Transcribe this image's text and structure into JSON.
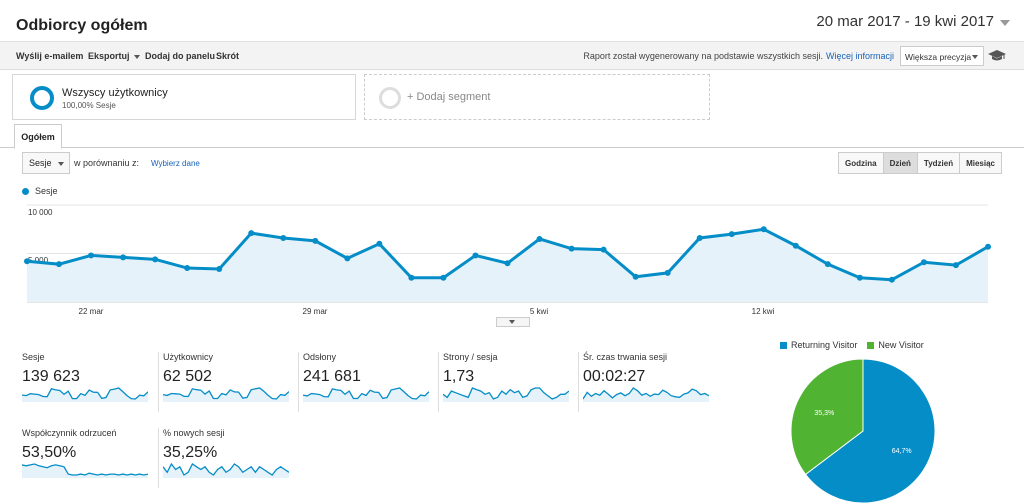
{
  "header": {
    "title": "Odbiorcy ogółem",
    "date_range": "20 mar 2017 - 19 kwi 2017"
  },
  "toolbar": {
    "email": "Wyślij e-mailem",
    "export": "Eksportuj",
    "add_panel": "Dodaj do panelu",
    "shortcut": "Skrót",
    "info_text": "Raport został wygenerowany na podstawie wszystkich sesji.",
    "info_link": "Więcej informacji",
    "precision": "Większa precyzja"
  },
  "segments": {
    "active": {
      "name": "Wszyscy użytkownicy",
      "sub": "100,00% Sesje"
    },
    "add_label": "+ Dodaj segment"
  },
  "tabs": {
    "overview": "Ogółem"
  },
  "controls": {
    "metric": "Sesje",
    "compare_label": "w porównaniu z:",
    "choose_data": "Wybierz dane",
    "granularity": [
      "Godzina",
      "Dzień",
      "Tydzień",
      "Miesiąc"
    ],
    "active_granularity": "Dzień"
  },
  "chart_data": [
    {
      "type": "area",
      "series": [
        {
          "name": "Sesje",
          "values": [
            4200,
            3900,
            4800,
            4600,
            4400,
            3500,
            3400,
            7100,
            6600,
            6300,
            4500,
            6000,
            2500,
            2500,
            4800,
            4000,
            6500,
            5500,
            5400,
            2600,
            3000,
            6600,
            7000,
            7500,
            5800,
            3900,
            2500,
            2300,
            4100,
            3800,
            5700
          ]
        }
      ],
      "x_tick_labels": [
        "22 mar",
        "29 mar",
        "5 kwi",
        "12 kwi"
      ],
      "y_tick_labels": [
        "10 000",
        "5 000"
      ],
      "ylim": [
        0,
        10000
      ],
      "color": "#058dc7"
    },
    {
      "type": "pie",
      "categories": [
        "Returning Visitor",
        "New Visitor"
      ],
      "values": [
        64.7,
        35.3
      ],
      "labels": [
        "64,7%",
        "35,3%"
      ],
      "colors": [
        "#058dc7",
        "#50b432"
      ],
      "legend": "top"
    }
  ],
  "scorecards": [
    {
      "label": "Sesje",
      "value": "139 623",
      "spark": [
        4.2,
        3.9,
        4.8,
        4.6,
        4.4,
        3.5,
        3.4,
        7.1,
        6.6,
        6.3,
        4.5,
        6.0,
        2.5,
        2.5,
        4.8,
        4.0,
        6.5,
        5.5,
        5.4,
        2.6,
        3.0,
        6.6,
        7.0,
        7.5,
        5.8,
        3.9,
        2.5,
        2.3,
        4.1,
        3.8,
        5.7
      ]
    },
    {
      "label": "Użytkownicy",
      "value": "62 502",
      "spark": [
        3.8,
        3.5,
        4.2,
        4.1,
        4.0,
        3.2,
        3.1,
        5.9,
        5.6,
        5.4,
        4.0,
        5.1,
        2.4,
        2.4,
        4.2,
        3.7,
        5.5,
        4.8,
        4.7,
        2.5,
        2.8,
        5.6,
        5.9,
        6.2,
        5.0,
        3.6,
        2.4,
        2.2,
        3.8,
        3.5,
        4.9
      ]
    },
    {
      "label": "Odsłony",
      "value": "241 681",
      "spark": [
        7.1,
        6.5,
        8.3,
        8.0,
        7.5,
        5.9,
        5.8,
        12.1,
        11.3,
        10.9,
        7.8,
        10.3,
        4.4,
        4.4,
        8.3,
        6.9,
        11.0,
        9.5,
        9.3,
        4.5,
        5.2,
        11.3,
        12.0,
        12.8,
        9.9,
        6.7,
        4.4,
        4.0,
        7.1,
        6.6,
        9.8
      ]
    },
    {
      "label": "Strony / sesja",
      "value": "1,73",
      "spark": [
        1.72,
        1.7,
        1.74,
        1.73,
        1.72,
        1.71,
        1.7,
        1.76,
        1.75,
        1.74,
        1.72,
        1.73,
        1.69,
        1.7,
        1.74,
        1.72,
        1.75,
        1.73,
        1.74,
        1.7,
        1.71,
        1.75,
        1.76,
        1.76,
        1.73,
        1.71,
        1.69,
        1.7,
        1.72,
        1.72,
        1.74
      ]
    },
    {
      "label": "Śr. czas trwania sesji",
      "value": "00:02:27",
      "spark": [
        140,
        152,
        145,
        150,
        147,
        155,
        149,
        142,
        148,
        151,
        146,
        150,
        160,
        155,
        147,
        150,
        145,
        149,
        148,
        156,
        152,
        146,
        144,
        143,
        149,
        151,
        158,
        155,
        148,
        150,
        146
      ]
    },
    {
      "label": "Współczynnik odrzuceń",
      "value": "53,50%",
      "spark": [
        58,
        57,
        58,
        59,
        57,
        56,
        55,
        57,
        58,
        57,
        56,
        48,
        47,
        47,
        48,
        47,
        49,
        48,
        47,
        48,
        47,
        48,
        48,
        47,
        48,
        47,
        48,
        47,
        48,
        47,
        48
      ]
    },
    {
      "label": "% nowych sesji",
      "value": "35,25%",
      "spark": [
        36,
        34,
        37,
        35,
        36,
        33,
        34,
        37,
        36,
        35,
        36,
        34,
        33,
        35,
        36,
        34,
        35,
        37,
        36,
        34,
        35,
        36,
        34,
        36,
        35,
        34,
        33,
        35,
        36,
        35,
        34
      ]
    }
  ]
}
